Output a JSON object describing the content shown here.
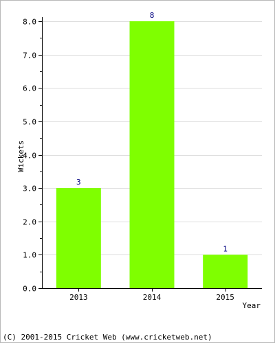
{
  "chart_data": {
    "type": "bar",
    "title": "",
    "xlabel": "Year",
    "ylabel": "Wickets",
    "categories": [
      "2013",
      "2014",
      "2015"
    ],
    "values": [
      3,
      8,
      1
    ],
    "data_labels": [
      "3",
      "8",
      "1"
    ],
    "ylim": [
      0,
      8
    ],
    "yticks": [
      "0.0",
      "1.0",
      "2.0",
      "3.0",
      "4.0",
      "5.0",
      "6.0",
      "7.0",
      "8.0"
    ],
    "grid": true,
    "bar_color": "#7fff00",
    "label_color": "#000080"
  },
  "footer": {
    "copyright": "(C) 2001-2015 Cricket Web (www.cricketweb.net)"
  }
}
